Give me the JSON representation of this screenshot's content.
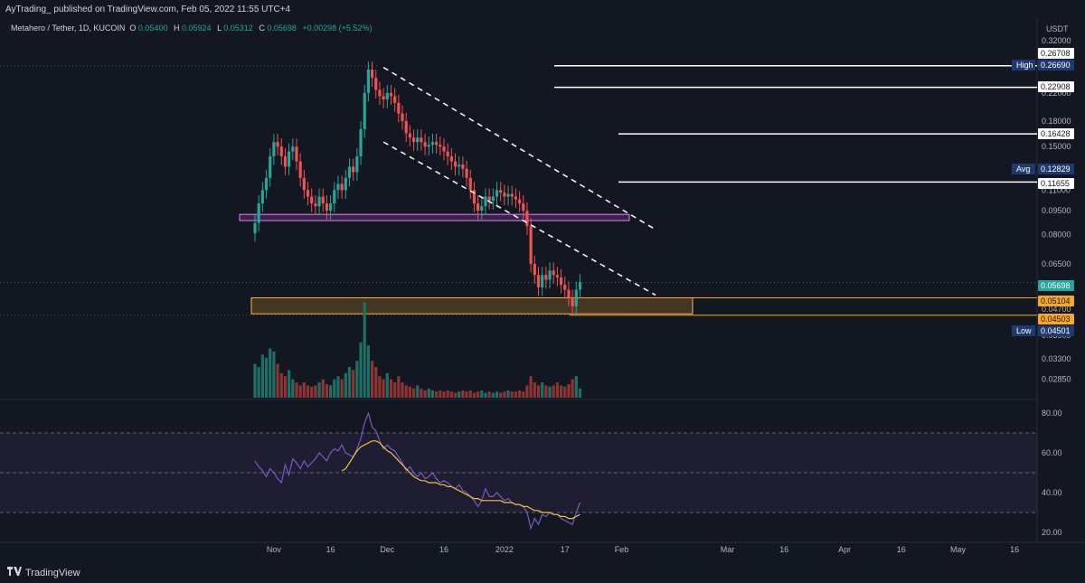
{
  "header": {
    "publisher_line": "AyTrading_ published on TradingView.com, Feb 05, 2022 11:55 UTC+4"
  },
  "legend": {
    "symbol": "Metahero / Tether, 1D, KUCOIN",
    "o_label": "O",
    "o_value": "0.05400",
    "h_label": "H",
    "h_value": "0.05924",
    "l_label": "L",
    "l_value": "0.05312",
    "c_label": "C",
    "c_value": "0.05698",
    "change": "+0.00298 (+5.52%)"
  },
  "footer": {
    "brand": "TradingView"
  },
  "colors": {
    "background": "#131722",
    "up": "#26a69a",
    "down": "#ef5350",
    "volume_up": "#1e6f65",
    "volume_down": "#8e3432",
    "rsi_line": "#7e57c2",
    "rsi_ma": "#f0c23b",
    "purple_zone": "#9c27b0",
    "orange_zone": "#f9a825",
    "grid": "#1e222d"
  },
  "chart_data": [
    {
      "type": "candlestick",
      "title": "",
      "y_scale": "log",
      "ylim": [
        0.025,
        0.33
      ],
      "y_ticks": [
        "0.32000",
        "0.26700",
        "0.22000",
        "0.18000",
        "0.15000",
        "0.11000",
        "0.09500",
        "0.08000",
        "0.06500",
        "0.04700",
        "0.03900",
        "0.03300",
        "0.02850"
      ],
      "y_unit": "USDT",
      "x_ticks": [
        "Nov",
        "16",
        "Dec",
        "16",
        "2022",
        "17",
        "Feb",
        "Mar",
        "16",
        "Apr",
        "16",
        "May",
        "16"
      ],
      "x_tick_dates": [
        "2021-11-01",
        "2021-11-16",
        "2021-12-01",
        "2021-12-16",
        "2022-01-01",
        "2022-01-17",
        "2022-02-01",
        "2022-03-01",
        "2022-03-16",
        "2022-04-01",
        "2022-04-16",
        "2022-05-01",
        "2022-05-16"
      ],
      "candle_start_date": "2021-10-27",
      "closes": [
        0.087,
        0.1,
        0.11,
        0.12,
        0.14,
        0.155,
        0.15,
        0.14,
        0.13,
        0.145,
        0.15,
        0.135,
        0.12,
        0.11,
        0.105,
        0.1,
        0.098,
        0.105,
        0.1,
        0.095,
        0.1,
        0.11,
        0.115,
        0.11,
        0.12,
        0.13,
        0.125,
        0.14,
        0.17,
        0.22,
        0.26,
        0.245,
        0.225,
        0.215,
        0.21,
        0.22,
        0.215,
        0.205,
        0.19,
        0.18,
        0.165,
        0.16,
        0.155,
        0.16,
        0.155,
        0.15,
        0.152,
        0.155,
        0.152,
        0.15,
        0.145,
        0.14,
        0.135,
        0.13,
        0.132,
        0.128,
        0.12,
        0.11,
        0.1,
        0.095,
        0.098,
        0.105,
        0.102,
        0.105,
        0.11,
        0.108,
        0.105,
        0.107,
        0.105,
        0.103,
        0.1,
        0.095,
        0.085,
        0.065,
        0.06,
        0.055,
        0.06,
        0.058,
        0.062,
        0.06,
        0.059,
        0.056,
        0.054,
        0.051,
        0.048,
        0.054,
        0.057
      ],
      "series": [
        {
          "name": "",
          "type": "horizontal_lines",
          "values": [
            0.26708,
            0.22908,
            0.16428,
            0.11655
          ]
        }
      ],
      "price_labels": [
        {
          "text": "0.26708"
        },
        {
          "text": "0.26690",
          "tag": "High"
        },
        {
          "text": "0.22908"
        },
        {
          "text": "0.16428"
        },
        {
          "text": "0.12829",
          "tag": "Avg"
        },
        {
          "text": "0.11655"
        },
        {
          "text": "0.05698",
          "kind": "last"
        },
        {
          "text": "0.05104",
          "kind": "zone"
        },
        {
          "text": "0.04503",
          "kind": "zone"
        },
        {
          "text": "0.04501",
          "tag": "Low"
        }
      ],
      "zones": [
        {
          "name": "",
          "from": 0.0885,
          "to": 0.0925,
          "color": "purple"
        },
        {
          "name": "",
          "from": 0.0455,
          "to": 0.051,
          "color": "orange"
        }
      ],
      "trendlines": [
        {
          "name": "",
          "style": "dashed",
          "from": [
            "2021-11-30",
            0.264
          ],
          "to": [
            "2022-02-10",
            0.083
          ]
        },
        {
          "name": "",
          "style": "dashed",
          "from": [
            "2021-11-30",
            0.155
          ],
          "to": [
            "2022-02-10",
            0.052
          ]
        }
      ],
      "volume": [
        0.55,
        0.5,
        0.7,
        0.65,
        0.8,
        0.75,
        0.55,
        0.4,
        0.35,
        0.45,
        0.3,
        0.25,
        0.2,
        0.25,
        0.2,
        0.18,
        0.2,
        0.25,
        0.3,
        0.22,
        0.2,
        0.3,
        0.35,
        0.3,
        0.4,
        0.5,
        0.45,
        0.6,
        0.9,
        1.55,
        0.85,
        0.6,
        0.5,
        0.35,
        0.3,
        0.4,
        0.3,
        0.25,
        0.35,
        0.25,
        0.2,
        0.18,
        0.15,
        0.2,
        0.15,
        0.12,
        0.15,
        0.12,
        0.1,
        0.12,
        0.1,
        0.12,
        0.1,
        0.08,
        0.1,
        0.12,
        0.1,
        0.12,
        0.08,
        0.1,
        0.12,
        0.08,
        0.1,
        0.08,
        0.1,
        0.08,
        0.1,
        0.12,
        0.1,
        0.1,
        0.12,
        0.1,
        0.2,
        0.35,
        0.25,
        0.2,
        0.25,
        0.2,
        0.18,
        0.2,
        0.25,
        0.2,
        0.18,
        0.22,
        0.3,
        0.35,
        0.15
      ]
    },
    {
      "type": "line",
      "title": "",
      "ylim": [
        15,
        85
      ],
      "y_ticks": [
        "80.00",
        "60.00",
        "40.00",
        "20.00"
      ],
      "bands": [
        30,
        50,
        70
      ],
      "series": [
        {
          "name": "",
          "values": [
            56,
            53,
            51,
            48,
            52,
            50,
            47,
            45,
            54,
            49,
            57,
            55,
            52,
            56,
            53,
            55,
            57,
            60,
            58,
            56,
            60,
            62,
            61,
            64,
            60,
            59,
            58,
            62,
            67,
            75,
            80,
            73,
            71,
            66,
            62,
            64,
            62,
            61,
            58,
            55,
            51,
            53,
            50,
            48,
            50,
            47,
            48,
            50,
            47,
            45,
            46,
            45,
            43,
            42,
            44,
            41,
            40,
            38,
            36,
            33,
            36,
            42,
            38,
            38,
            40,
            38,
            36,
            37,
            35,
            34,
            34,
            33,
            30,
            22,
            27,
            24,
            29,
            28,
            30,
            29,
            29,
            27,
            26,
            25,
            24,
            30,
            35
          ]
        },
        {
          "name": "",
          "values": [
            null,
            null,
            null,
            null,
            null,
            null,
            null,
            null,
            null,
            null,
            null,
            null,
            null,
            null,
            null,
            null,
            null,
            null,
            null,
            null,
            null,
            null,
            null,
            51,
            52,
            55,
            58,
            61,
            63,
            64,
            65,
            66,
            66,
            65,
            63,
            61,
            60,
            58,
            56,
            54,
            52,
            50,
            48,
            47,
            46,
            46,
            45,
            45,
            45,
            44,
            44,
            43,
            43,
            42,
            41,
            40,
            39,
            38,
            37,
            37,
            36,
            36,
            36,
            36,
            36,
            36,
            35,
            35,
            35,
            34,
            34,
            33,
            33,
            32,
            31,
            31,
            30,
            30,
            30,
            29,
            29,
            28,
            28,
            27,
            27,
            28,
            29
          ]
        }
      ]
    }
  ]
}
